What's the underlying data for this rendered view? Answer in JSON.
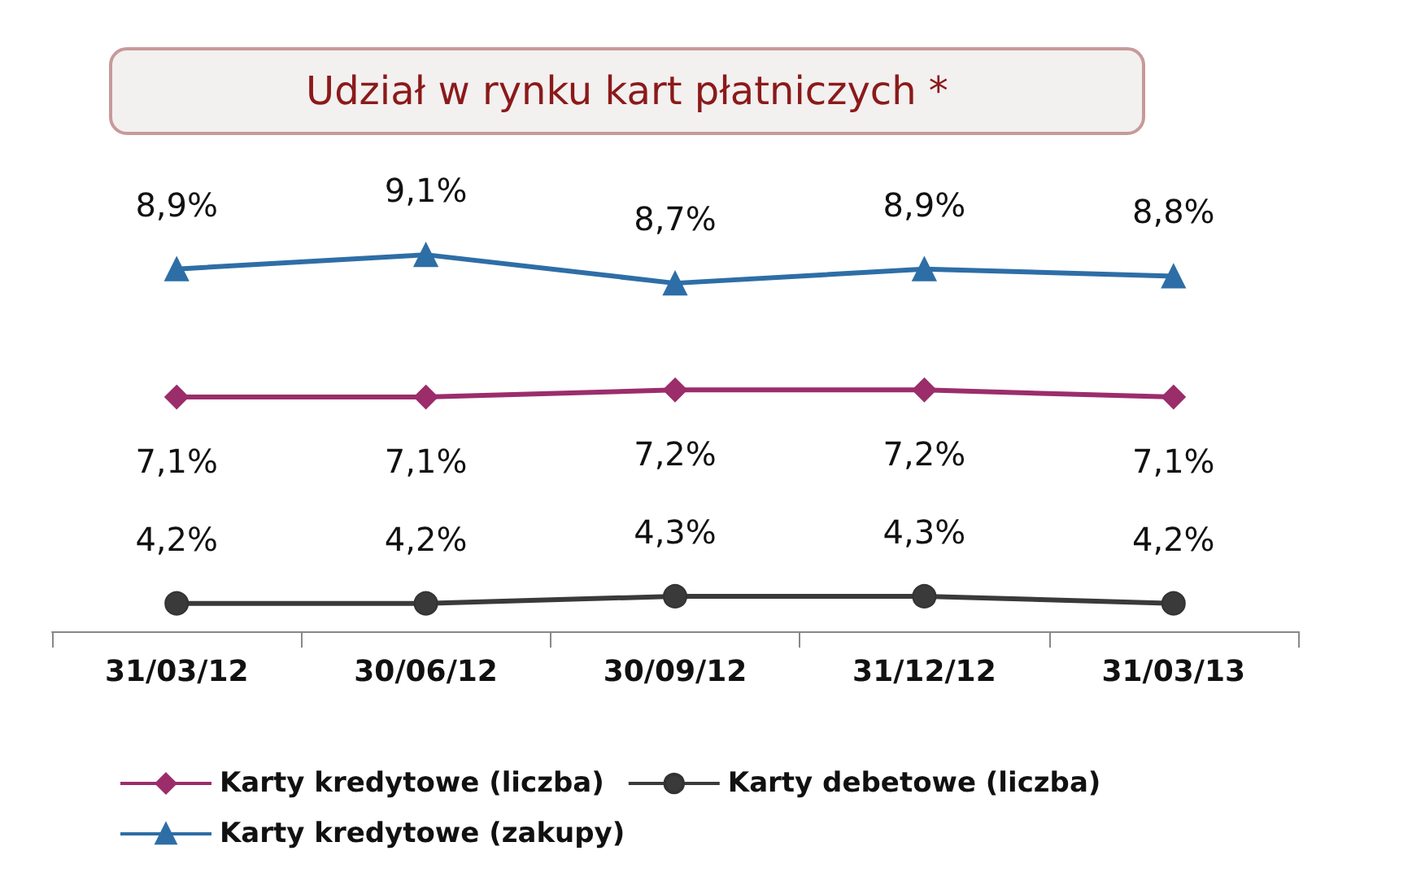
{
  "chart_data": {
    "type": "line",
    "title": "Udział w rynku kart płatniczych *",
    "categories": [
      "31/03/12",
      "30/06/12",
      "30/09/12",
      "31/12/12",
      "31/03/13"
    ],
    "series": [
      {
        "name": "Karty kredytowe (liczba)",
        "color": "#9b2d6b",
        "marker": "diamond",
        "values": [
          7.1,
          7.1,
          7.2,
          7.2,
          7.1
        ],
        "value_labels": [
          "7,1%",
          "7,1%",
          "7,2%",
          "7,2%",
          "7,1%"
        ]
      },
      {
        "name": "Karty debetowe (liczba)",
        "color": "#3a3a3a",
        "marker": "circle",
        "values": [
          4.2,
          4.2,
          4.3,
          4.3,
          4.2
        ],
        "value_labels": [
          "4,2%",
          "4,2%",
          "4,3%",
          "4,3%",
          "4,2%"
        ]
      },
      {
        "name": "Karty kredytowe (zakupy)",
        "color": "#2e6ea6",
        "marker": "triangle",
        "values": [
          8.9,
          9.1,
          8.7,
          8.9,
          8.8
        ],
        "value_labels": [
          "8,9%",
          "9,1%",
          "8,7%",
          "8,9%",
          "8,8%"
        ]
      }
    ],
    "legend": "bottom",
    "grid": false,
    "tick_labels": "x"
  }
}
